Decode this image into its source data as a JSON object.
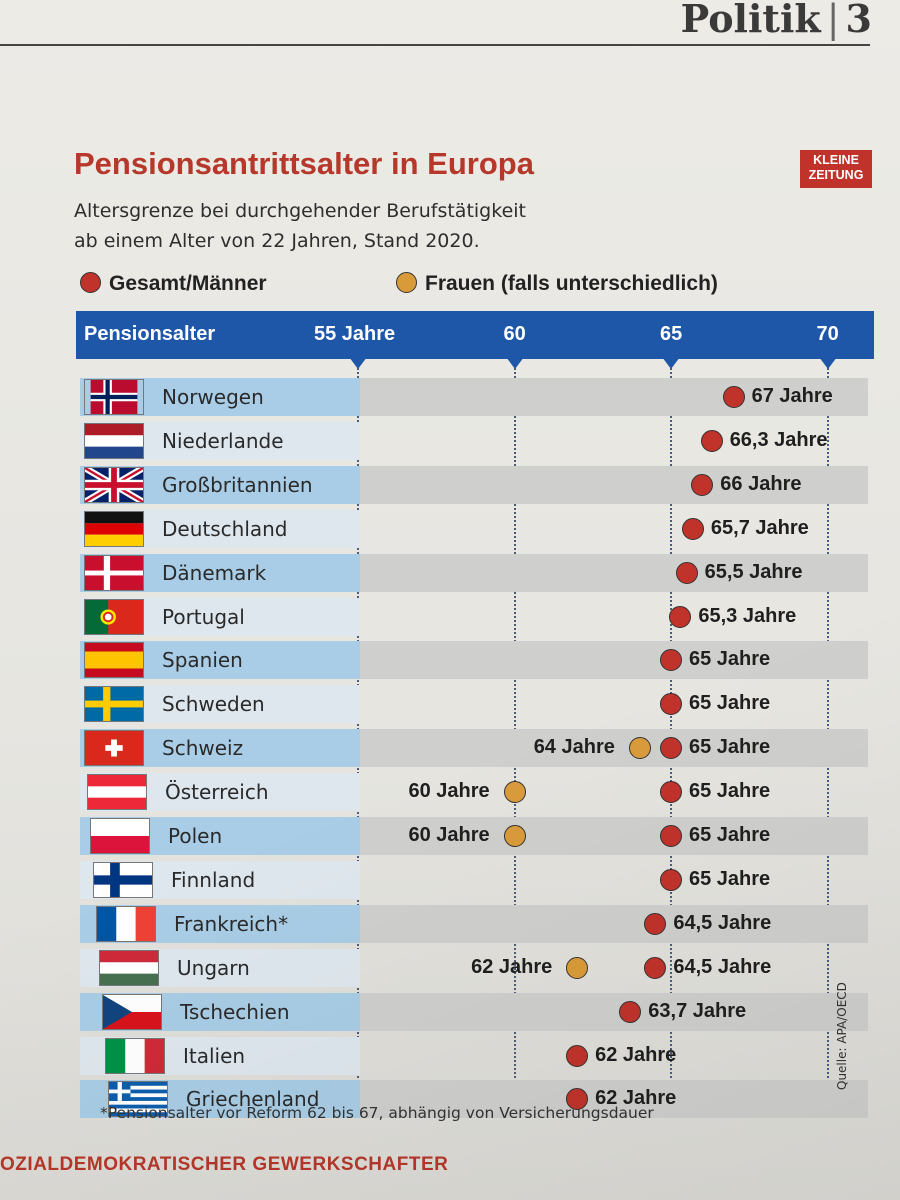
{
  "page": {
    "section": "Politik",
    "page_number": "3",
    "title": "Pensionsantrittsalter in Europa",
    "logo_line1": "KLEINE",
    "logo_line2": "ZEITUNG",
    "subtitle_line1": "Altersgrenze bei durchgehender Berufstätigkeit",
    "subtitle_line2": "ab einem Alter von 22 Jahren, Stand 2020.",
    "footnote": "*Pensionsalter vor Reform 62 bis 67, abhängig von Versicherungsdauer",
    "source": "Quelle: APA/OECD",
    "bottom_banner": "OZIALDEMOKRATISCHER GEWERKSCHAFTER"
  },
  "colors": {
    "title_red": "#b6382a",
    "header_blue": "#1e57a8",
    "male_dot": "#c0332b",
    "female_dot": "#d99b3a",
    "row_blue": "#a9cde6",
    "row_grey": "#cfcfcd"
  },
  "chart_data": {
    "type": "scatter",
    "title": "Pensionsantrittsalter in Europa",
    "header_label": "Pensionsalter",
    "x_ticks": [
      "55 Jahre",
      "60",
      "65",
      "70"
    ],
    "x_tick_values": [
      55,
      60,
      65,
      70
    ],
    "xlim": [
      55,
      70
    ],
    "legend": [
      "Gesamt/Männer",
      "Frauen (falls unterschiedlich)"
    ],
    "countries": [
      {
        "name": "Norwegen",
        "flag": "norway",
        "m": 67,
        "m_label": "67 Jahre",
        "f": null,
        "f_label": ""
      },
      {
        "name": "Niederlande",
        "flag": "netherlands",
        "m": 66.3,
        "m_label": "66,3 Jahre",
        "f": null,
        "f_label": ""
      },
      {
        "name": "Großbritannien",
        "flag": "uk",
        "m": 66,
        "m_label": "66 Jahre",
        "f": null,
        "f_label": ""
      },
      {
        "name": "Deutschland",
        "flag": "germany",
        "m": 65.7,
        "m_label": "65,7 Jahre",
        "f": null,
        "f_label": ""
      },
      {
        "name": "Dänemark",
        "flag": "denmark",
        "m": 65.5,
        "m_label": "65,5 Jahre",
        "f": null,
        "f_label": ""
      },
      {
        "name": "Portugal",
        "flag": "portugal",
        "m": 65.3,
        "m_label": "65,3 Jahre",
        "f": null,
        "f_label": ""
      },
      {
        "name": "Spanien",
        "flag": "spain",
        "m": 65,
        "m_label": "65 Jahre",
        "f": null,
        "f_label": ""
      },
      {
        "name": "Schweden",
        "flag": "sweden",
        "m": 65,
        "m_label": "65 Jahre",
        "f": null,
        "f_label": ""
      },
      {
        "name": "Schweiz",
        "flag": "switzerland",
        "m": 65,
        "m_label": "65 Jahre",
        "f": 64,
        "f_label": "64 Jahre"
      },
      {
        "name": "Österreich",
        "flag": "austria",
        "m": 65,
        "m_label": "65 Jahre",
        "f": 60,
        "f_label": "60 Jahre"
      },
      {
        "name": "Polen",
        "flag": "poland",
        "m": 65,
        "m_label": "65 Jahre",
        "f": 60,
        "f_label": "60 Jahre"
      },
      {
        "name": "Finnland",
        "flag": "finland",
        "m": 65,
        "m_label": "65 Jahre",
        "f": null,
        "f_label": ""
      },
      {
        "name": "Frankreich*",
        "flag": "france",
        "m": 64.5,
        "m_label": "64,5 Jahre",
        "f": null,
        "f_label": ""
      },
      {
        "name": "Ungarn",
        "flag": "hungary",
        "m": 64.5,
        "m_label": "64,5 Jahre",
        "f": 62,
        "f_label": "62 Jahre"
      },
      {
        "name": "Tschechien",
        "flag": "czech",
        "m": 63.7,
        "m_label": "63,7 Jahre",
        "f": null,
        "f_label": ""
      },
      {
        "name": "Italien",
        "flag": "italy",
        "m": 62,
        "m_label": "62 Jahre",
        "f": null,
        "f_label": ""
      },
      {
        "name": "Griechenland",
        "flag": "greece",
        "m": 62,
        "m_label": "62 Jahre",
        "f": null,
        "f_label": ""
      }
    ]
  }
}
